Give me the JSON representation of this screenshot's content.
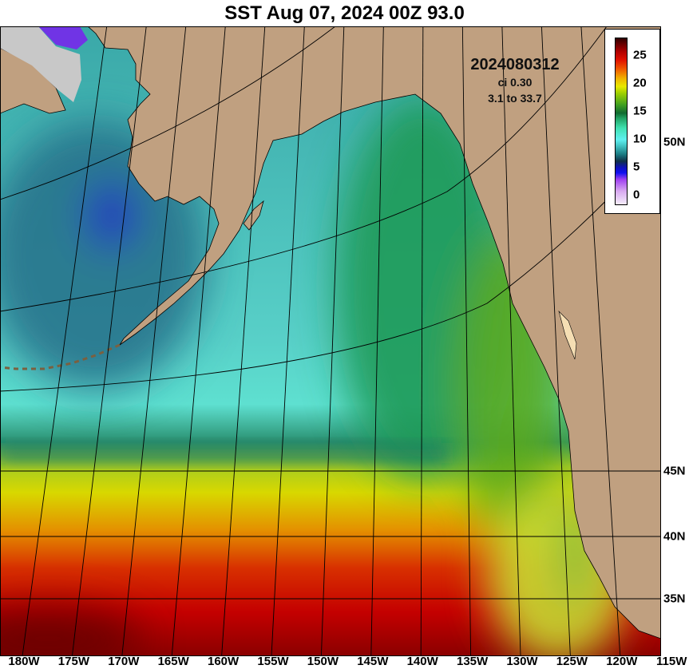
{
  "title": "SST Aug 07, 2024 00Z 93.0",
  "annotation": {
    "run": "2024080312",
    "ci": "ci 0.30",
    "range": "3.1 to 33.7"
  },
  "colorbar": {
    "labels": [
      "25",
      "20",
      "15",
      "10",
      "5",
      "0"
    ],
    "min": 0,
    "max": 28
  },
  "lon_labels": [
    "180W",
    "175W",
    "170W",
    "165W",
    "160W",
    "155W",
    "150W",
    "145W",
    "140W",
    "135W",
    "130W",
    "125W",
    "120W",
    "115W"
  ],
  "lat_labels": [
    "50N",
    "45N",
    "40N",
    "35N"
  ],
  "colors": {
    "land": "#c0a080",
    "ice": "#c8c8c8"
  }
}
